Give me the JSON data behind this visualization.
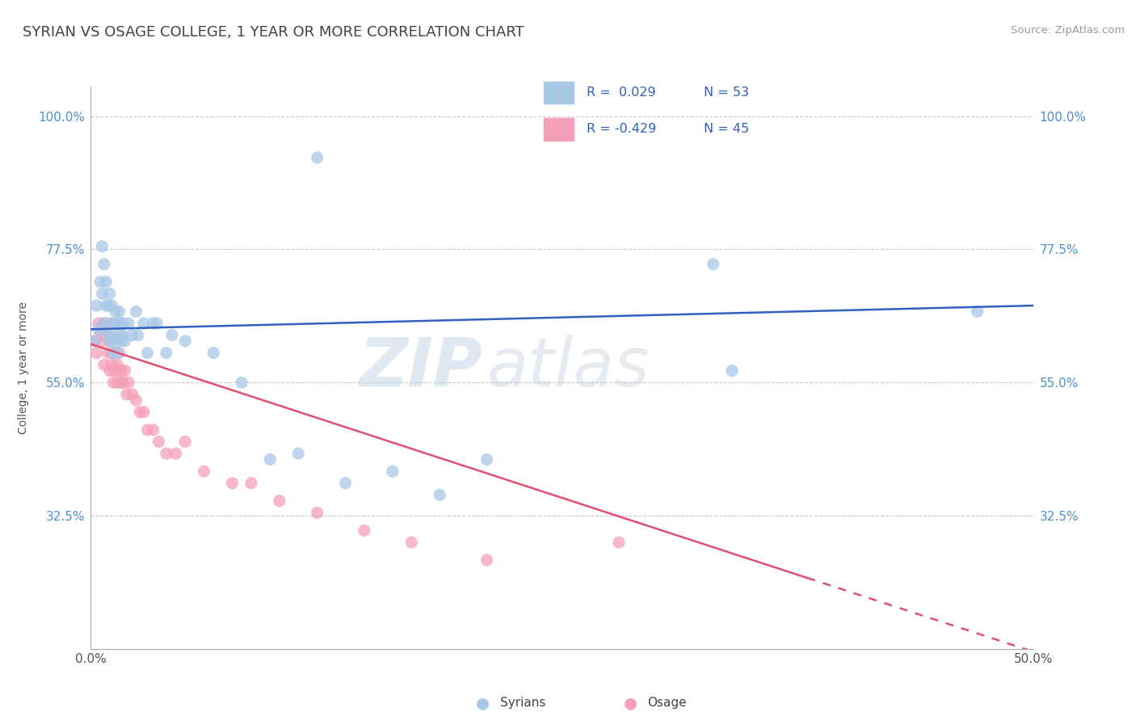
{
  "title": "SYRIAN VS OSAGE COLLEGE, 1 YEAR OR MORE CORRELATION CHART",
  "source": "Source: ZipAtlas.com",
  "ylabel": "College, 1 year or more",
  "xlim": [
    0.0,
    0.5
  ],
  "ylim": [
    0.1,
    1.05
  ],
  "ytick_labels": [
    "32.5%",
    "55.0%",
    "77.5%",
    "100.0%"
  ],
  "ytick_values": [
    0.325,
    0.55,
    0.775,
    1.0
  ],
  "xtick_labels": [
    "0.0%",
    "50.0%"
  ],
  "xtick_values": [
    0.0,
    0.5
  ],
  "legend_r_syrian": " 0.029",
  "legend_n_syrian": "53",
  "legend_r_osage": "-0.429",
  "legend_n_osage": "45",
  "watermark_zip": "ZIP",
  "watermark_atlas": "atlas",
  "color_syrian": "#a8c8e8",
  "color_osage": "#f5a0b8",
  "trendline_syrian_color": "#3060c0",
  "trendline_osage_color": "#e05070",
  "background_color": "#ffffff",
  "grid_color": "#bbbbbb",
  "syrian_x": [
    0.002,
    0.003,
    0.004,
    0.005,
    0.006,
    0.006,
    0.007,
    0.007,
    0.008,
    0.008,
    0.009,
    0.009,
    0.01,
    0.01,
    0.01,
    0.011,
    0.011,
    0.012,
    0.012,
    0.013,
    0.013,
    0.014,
    0.014,
    0.015,
    0.015,
    0.016,
    0.016,
    0.017,
    0.017,
    0.018,
    0.02,
    0.022,
    0.024,
    0.025,
    0.028,
    0.03,
    0.033,
    0.035,
    0.04,
    0.043,
    0.05,
    0.065,
    0.08,
    0.095,
    0.11,
    0.135,
    0.16,
    0.185,
    0.21,
    0.33,
    0.34,
    0.47,
    0.12
  ],
  "syrian_y": [
    0.62,
    0.68,
    0.64,
    0.72,
    0.78,
    0.7,
    0.75,
    0.65,
    0.72,
    0.68,
    0.68,
    0.63,
    0.65,
    0.7,
    0.62,
    0.68,
    0.63,
    0.65,
    0.6,
    0.67,
    0.62,
    0.65,
    0.6,
    0.67,
    0.63,
    0.65,
    0.62,
    0.65,
    0.63,
    0.62,
    0.65,
    0.63,
    0.67,
    0.63,
    0.65,
    0.6,
    0.65,
    0.65,
    0.6,
    0.63,
    0.62,
    0.6,
    0.55,
    0.42,
    0.43,
    0.38,
    0.4,
    0.36,
    0.42,
    0.75,
    0.57,
    0.67,
    0.93
  ],
  "osage_x": [
    0.002,
    0.003,
    0.004,
    0.005,
    0.006,
    0.007,
    0.007,
    0.008,
    0.009,
    0.01,
    0.01,
    0.011,
    0.011,
    0.012,
    0.012,
    0.013,
    0.014,
    0.014,
    0.015,
    0.015,
    0.016,
    0.016,
    0.017,
    0.018,
    0.019,
    0.02,
    0.022,
    0.024,
    0.026,
    0.028,
    0.03,
    0.033,
    0.036,
    0.04,
    0.045,
    0.05,
    0.06,
    0.075,
    0.085,
    0.1,
    0.12,
    0.145,
    0.17,
    0.21,
    0.28
  ],
  "osage_y": [
    0.62,
    0.6,
    0.65,
    0.63,
    0.62,
    0.65,
    0.58,
    0.63,
    0.6,
    0.62,
    0.57,
    0.58,
    0.6,
    0.57,
    0.55,
    0.6,
    0.58,
    0.55,
    0.57,
    0.6,
    0.55,
    0.57,
    0.55,
    0.57,
    0.53,
    0.55,
    0.53,
    0.52,
    0.5,
    0.5,
    0.47,
    0.47,
    0.45,
    0.43,
    0.43,
    0.45,
    0.4,
    0.38,
    0.38,
    0.35,
    0.33,
    0.3,
    0.28,
    0.25,
    0.28
  ],
  "trendline_syrian_x0": 0.0,
  "trendline_syrian_x1": 0.5,
  "trendline_syrian_y0": 0.64,
  "trendline_syrian_y1": 0.68,
  "trendline_osage_x0": 0.0,
  "trendline_osage_x1": 0.5,
  "trendline_osage_y0": 0.615,
  "trendline_osage_y1": 0.095,
  "trendline_osage_solid_end": 0.38
}
